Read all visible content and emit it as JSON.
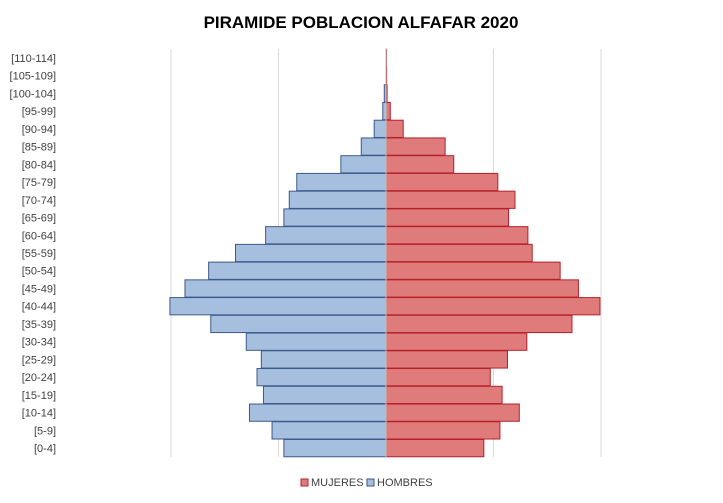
{
  "chart_data": {
    "type": "bar",
    "orientation": "horizontal-diverging",
    "title": "PIRAMIDE POBLACION ALFAFAR 2020",
    "categories": [
      "[0-4]",
      "[5-9]",
      "[10-14]",
      "[15-19]",
      "[20-24]",
      "[25-29]",
      "[30-34]",
      "[35-39]",
      "[40-44]",
      "[45-49]",
      "[50-54]",
      "[55-59]",
      "[60-64]",
      "[65-69]",
      "[70-74]",
      "[75-79]",
      "[80-84]",
      "[85-89]",
      "[90-94]",
      "[95-99]",
      "[100-104]",
      "[105-109]",
      "[110-114]"
    ],
    "series": [
      {
        "name": "HOMBRES",
        "side": "left",
        "color": "#a7bfdf",
        "border": "#3b5a8a",
        "values": [
          475,
          530,
          635,
          570,
          600,
          580,
          650,
          815,
          1005,
          935,
          825,
          700,
          560,
          475,
          450,
          415,
          210,
          115,
          55,
          15,
          8,
          0,
          0
        ]
      },
      {
        "name": "MUJERES",
        "side": "right",
        "color": "#e07b7b",
        "border": "#b5202a",
        "values": [
          455,
          530,
          620,
          540,
          485,
          565,
          655,
          865,
          995,
          895,
          810,
          680,
          660,
          570,
          600,
          520,
          315,
          275,
          80,
          20,
          5,
          3,
          2
        ]
      }
    ],
    "xlim": [
      -1000,
      1000
    ],
    "grid": true,
    "legend_position": "bottom-center",
    "legend": [
      "MUJERES",
      "HOMBRES"
    ]
  }
}
